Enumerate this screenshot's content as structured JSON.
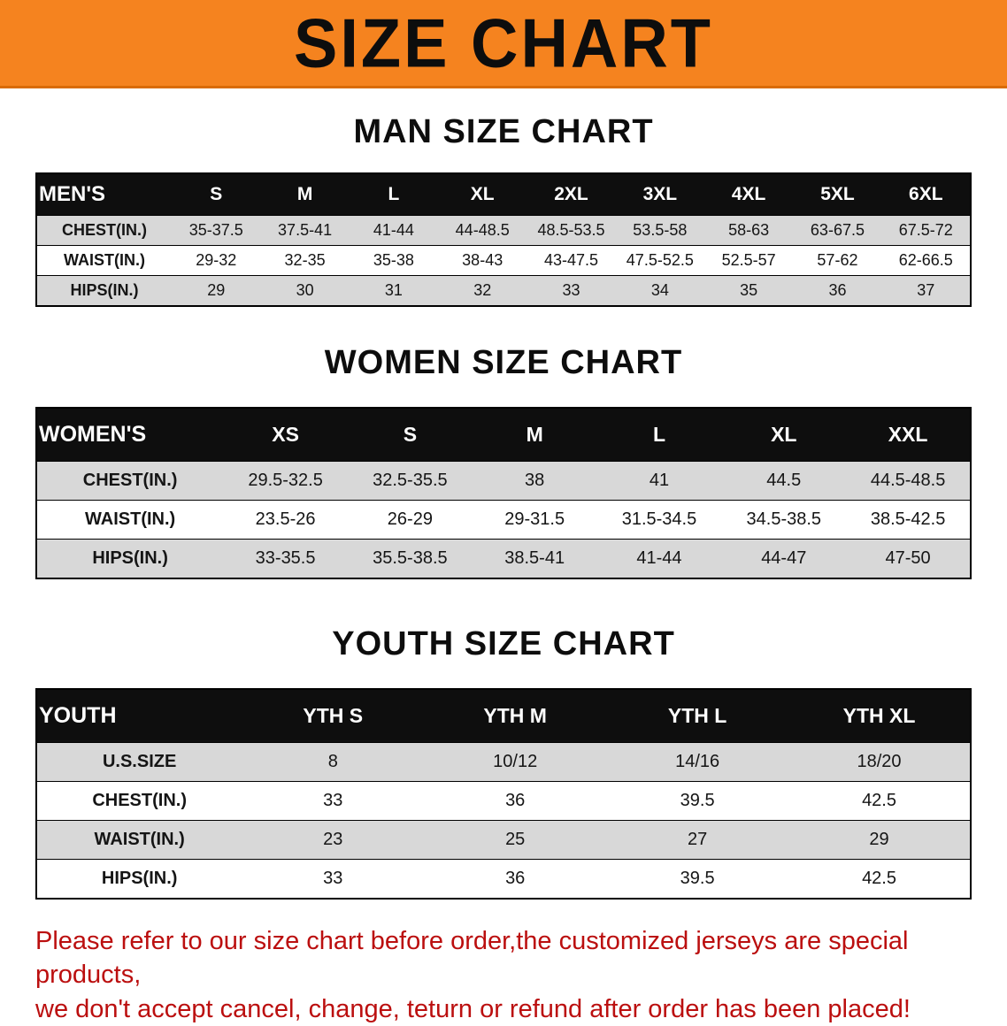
{
  "banner": {
    "title": "SIZE CHART"
  },
  "sections": [
    {
      "id": "men",
      "heading": "MAN SIZE CHART",
      "table": {
        "header": [
          "MEN'S",
          "S",
          "M",
          "L",
          "XL",
          "2XL",
          "3XL",
          "4XL",
          "5XL",
          "6XL"
        ],
        "rows": [
          {
            "label": "CHEST(IN.)",
            "values": [
              "35-37.5",
              "37.5-41",
              "41-44",
              "44-48.5",
              "48.5-53.5",
              "53.5-58",
              "58-63",
              "63-67.5",
              "67.5-72"
            ]
          },
          {
            "label": "WAIST(IN.)",
            "values": [
              "29-32",
              "32-35",
              "35-38",
              "38-43",
              "43-47.5",
              "47.5-52.5",
              "52.5-57",
              "57-62",
              "62-66.5"
            ]
          },
          {
            "label": "HIPS(IN.)",
            "values": [
              "29",
              "30",
              "31",
              "32",
              "33",
              "34",
              "35",
              "36",
              "37"
            ]
          }
        ]
      }
    },
    {
      "id": "women",
      "heading": "WOMEN SIZE CHART",
      "table": {
        "header": [
          "WOMEN'S",
          "XS",
          "S",
          "M",
          "L",
          "XL",
          "XXL"
        ],
        "rows": [
          {
            "label": "CHEST(IN.)",
            "values": [
              "29.5-32.5",
              "32.5-35.5",
              "38",
              "41",
              "44.5",
              "44.5-48.5"
            ]
          },
          {
            "label": "WAIST(IN.)",
            "values": [
              "23.5-26",
              "26-29",
              "29-31.5",
              "31.5-34.5",
              "34.5-38.5",
              "38.5-42.5"
            ]
          },
          {
            "label": "HIPS(IN.)",
            "values": [
              "33-35.5",
              "35.5-38.5",
              "38.5-41",
              "41-44",
              "44-47",
              "47-50"
            ]
          }
        ]
      }
    },
    {
      "id": "youth",
      "heading": "YOUTH SIZE CHART",
      "table": {
        "header": [
          "YOUTH",
          "YTH S",
          "YTH M",
          "YTH L",
          "YTH XL"
        ],
        "rows": [
          {
            "label": "U.S.SIZE",
            "values": [
              "8",
              "10/12",
              "14/16",
              "18/20"
            ]
          },
          {
            "label": "CHEST(IN.)",
            "values": [
              "33",
              "36",
              "39.5",
              "42.5"
            ]
          },
          {
            "label": "WAIST(IN.)",
            "values": [
              "23",
              "25",
              "27",
              "29"
            ]
          },
          {
            "label": "HIPS(IN.)",
            "values": [
              "33",
              "36",
              "39.5",
              "42.5"
            ]
          }
        ]
      }
    }
  ],
  "disclaimer": {
    "lines": [
      "Please refer to our size chart before order,the customized jerseys are special products,",
      "we don't accept cancel, change, teturn or refund after order has been placed!"
    ]
  },
  "colors": {
    "banner_orange": "#f5831f",
    "header_black": "#0e0e0e",
    "row_gray": "#d8d8d8",
    "disclaimer_red": "#bb0f0f"
  }
}
